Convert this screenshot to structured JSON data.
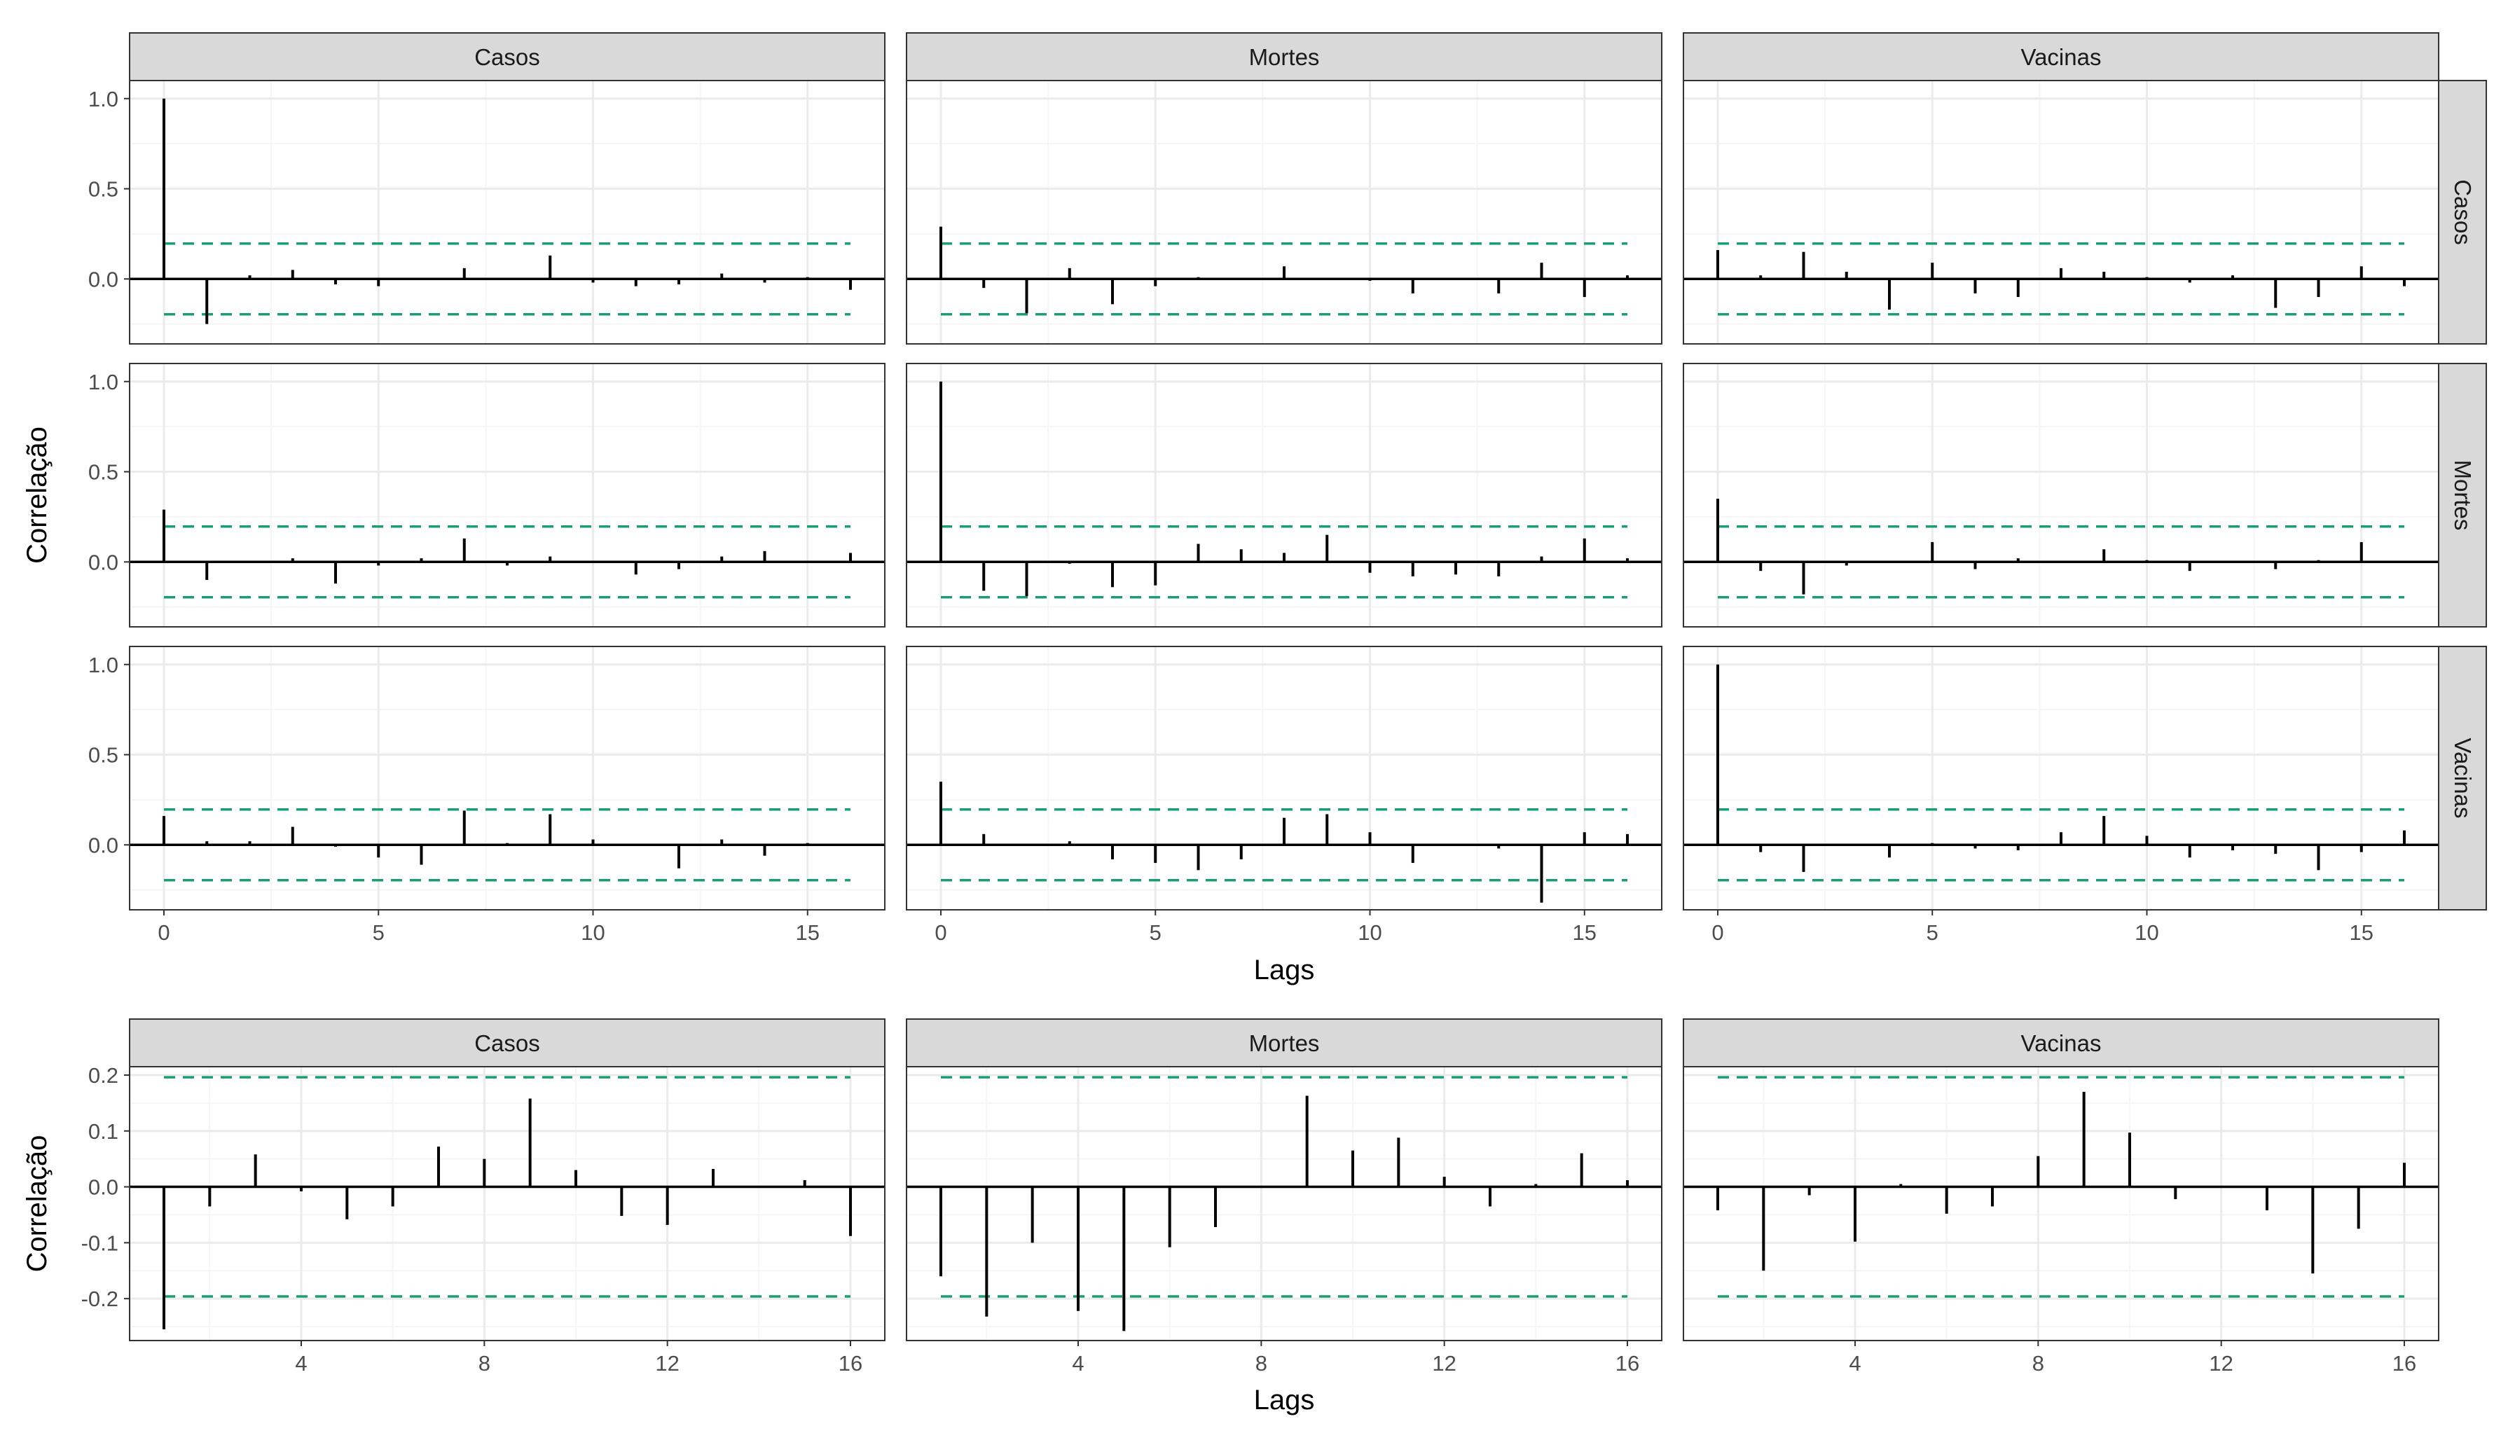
{
  "colors": {
    "strip_fill": "#d9d9d9",
    "panel_border": "#333333",
    "grid_major": "#ebebeb",
    "grid_minor": "#f5f5f5",
    "bar": "#000000",
    "ci": "#1b9e77",
    "text": "#4d4d4d",
    "title": "#000000"
  },
  "chart_data": [
    {
      "type": "bar",
      "id": "ccf-matrix",
      "layout": "facet-grid",
      "xlabel": "Lags",
      "ylabel": "Correlação",
      "col_strips": [
        "Casos",
        "Mortes",
        "Vacinas"
      ],
      "row_strips": [
        "Casos",
        "Mortes",
        "Vacinas"
      ],
      "xlim": [
        -0.8,
        16.8
      ],
      "ylim": [
        -0.36,
        1.1
      ],
      "x_ticks": [
        0,
        5,
        10,
        15
      ],
      "x_tick_labels": [
        "0",
        "5",
        "10",
        "15"
      ],
      "y_ticks": [
        0,
        0.5,
        1
      ],
      "y_tick_labels": [
        "0.0",
        "0.5",
        "1.0"
      ],
      "ci": 0.196,
      "lags": [
        0,
        1,
        2,
        3,
        4,
        5,
        6,
        7,
        8,
        9,
        10,
        11,
        12,
        13,
        14,
        15,
        16
      ],
      "panels": [
        {
          "row": "Casos",
          "col": "Casos",
          "values": [
            1.0,
            -0.25,
            0.02,
            0.05,
            -0.03,
            -0.04,
            0.0,
            0.06,
            0.0,
            0.13,
            -0.02,
            -0.04,
            -0.03,
            0.03,
            -0.02,
            0.01,
            -0.06
          ]
        },
        {
          "row": "Casos",
          "col": "Mortes",
          "values": [
            0.29,
            -0.05,
            -0.19,
            0.06,
            -0.14,
            -0.04,
            0.01,
            0.0,
            0.07,
            0.0,
            -0.01,
            -0.08,
            0.0,
            -0.08,
            0.09,
            -0.1,
            0.02
          ]
        },
        {
          "row": "Casos",
          "col": "Vacinas",
          "values": [
            0.16,
            0.02,
            0.15,
            0.04,
            -0.17,
            0.09,
            -0.08,
            -0.1,
            0.06,
            0.04,
            0.01,
            -0.02,
            0.02,
            -0.16,
            -0.1,
            0.07,
            -0.04
          ]
        },
        {
          "row": "Mortes",
          "col": "Casos",
          "values": [
            0.29,
            -0.1,
            0.0,
            0.02,
            -0.12,
            -0.02,
            0.02,
            0.13,
            -0.02,
            0.03,
            0.0,
            -0.07,
            -0.04,
            0.03,
            0.06,
            0.0,
            0.05
          ]
        },
        {
          "row": "Mortes",
          "col": "Mortes",
          "values": [
            1.0,
            -0.16,
            -0.19,
            -0.01,
            -0.14,
            -0.13,
            0.1,
            0.07,
            0.05,
            0.15,
            -0.06,
            -0.08,
            -0.07,
            -0.08,
            0.03,
            0.13,
            0.02
          ]
        },
        {
          "row": "Mortes",
          "col": "Vacinas",
          "values": [
            0.35,
            -0.05,
            -0.18,
            -0.02,
            0.0,
            0.11,
            -0.04,
            0.02,
            0.0,
            0.07,
            0.01,
            -0.05,
            0.0,
            -0.04,
            0.01,
            0.11,
            0.0
          ]
        },
        {
          "row": "Vacinas",
          "col": "Casos",
          "values": [
            0.16,
            0.02,
            0.02,
            0.1,
            -0.01,
            -0.07,
            -0.11,
            0.19,
            0.01,
            0.17,
            0.03,
            0.0,
            -0.13,
            0.03,
            -0.06,
            0.01,
            0.0
          ]
        },
        {
          "row": "Vacinas",
          "col": "Mortes",
          "values": [
            0.35,
            0.06,
            0.0,
            0.02,
            -0.08,
            -0.1,
            -0.14,
            -0.08,
            0.15,
            0.17,
            0.07,
            -0.1,
            0.0,
            -0.02,
            -0.32,
            0.07,
            0.06
          ]
        },
        {
          "row": "Vacinas",
          "col": "Vacinas",
          "values": [
            1.0,
            -0.04,
            -0.15,
            0.0,
            -0.07,
            0.01,
            -0.02,
            -0.03,
            0.07,
            0.16,
            0.05,
            -0.07,
            -0.03,
            -0.05,
            -0.14,
            -0.04,
            0.08
          ]
        }
      ]
    },
    {
      "type": "bar",
      "id": "pacf-row",
      "layout": "facet-row",
      "xlabel": "Lags",
      "ylabel": "Correlação",
      "col_strips": [
        "Casos",
        "Mortes",
        "Vacinas"
      ],
      "xlim": [
        0.25,
        16.75
      ],
      "ylim": [
        -0.275,
        0.215
      ],
      "x_ticks": [
        4,
        8,
        12,
        16
      ],
      "x_tick_labels": [
        "4",
        "8",
        "12",
        "16"
      ],
      "y_ticks": [
        -0.2,
        -0.1,
        0,
        0.1,
        0.2
      ],
      "y_tick_labels": [
        "-0.2",
        "-0.1",
        "0.0",
        "0.1",
        "0.2"
      ],
      "ci": 0.196,
      "lags": [
        1,
        2,
        3,
        4,
        5,
        6,
        7,
        8,
        9,
        10,
        11,
        12,
        13,
        14,
        15,
        16
      ],
      "panels": [
        {
          "col": "Casos",
          "values": [
            -0.255,
            -0.035,
            0.058,
            -0.008,
            -0.058,
            -0.035,
            0.072,
            0.05,
            0.158,
            0.03,
            -0.052,
            -0.068,
            0.032,
            0.0,
            0.012,
            -0.088
          ]
        },
        {
          "col": "Mortes",
          "values": [
            -0.16,
            -0.232,
            -0.1,
            -0.222,
            -0.258,
            -0.108,
            -0.072,
            0.0,
            0.163,
            0.065,
            0.088,
            0.018,
            -0.035,
            0.005,
            0.06,
            0.012
          ]
        },
        {
          "col": "Vacinas",
          "values": [
            -0.042,
            -0.15,
            -0.015,
            -0.098,
            0.005,
            -0.048,
            -0.035,
            0.055,
            0.17,
            0.097,
            -0.022,
            0.0,
            -0.042,
            -0.155,
            -0.075,
            0.043
          ]
        }
      ]
    }
  ]
}
